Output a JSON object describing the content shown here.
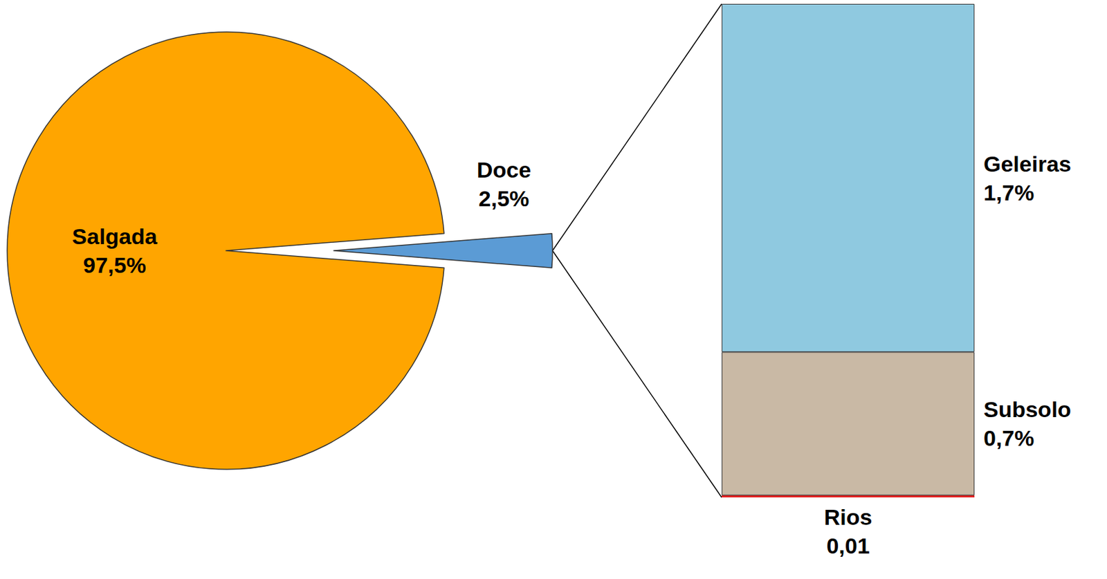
{
  "chart_data": [
    {
      "type": "pie",
      "categories": [
        "Salgada",
        "Doce"
      ],
      "values": [
        97.5,
        2.5
      ],
      "value_labels": [
        "97,5%",
        "2,5%"
      ],
      "colors": [
        "#ffa500",
        "#5b9bd5"
      ],
      "data_labels": true
    },
    {
      "type": "bar",
      "stacked": true,
      "categories": [
        null
      ],
      "series": [
        {
          "name": "Rios",
          "color": "#e02020",
          "values": [
            0.01
          ],
          "value_labels": [
            "0,01"
          ]
        },
        {
          "name": "Subsolo",
          "color": "#c9b9a5",
          "values": [
            0.7
          ],
          "value_labels": [
            "0,7%"
          ]
        },
        {
          "name": "Geleiras",
          "color": "#8fc9e0",
          "values": [
            1.7
          ],
          "value_labels": [
            "1,7%"
          ]
        }
      ],
      "data_labels": true,
      "tick_labels": false
    }
  ]
}
